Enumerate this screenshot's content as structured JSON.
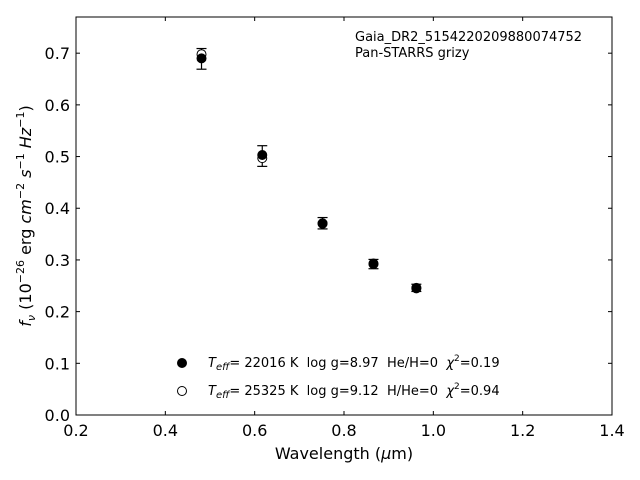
{
  "chart_data": {
    "type": "scatter",
    "annotation_lines": [
      "Gaia_DR2_5154220209880074752",
      "Pan-STARRS grizy"
    ],
    "xlabel": "Wavelength (μm)",
    "ylabel": "f_ν (10^-26 erg cm^-2 s^-1 Hz^-1)",
    "xlim": [
      0.2,
      1.4
    ],
    "ylim": [
      0.0,
      0.77
    ],
    "xticks": [
      0.2,
      0.4,
      0.6,
      0.8,
      1.0,
      1.2,
      1.4
    ],
    "xtick_labels": [
      "0.2",
      "0.4",
      "0.6",
      "0.8",
      "1.0",
      "1.2",
      "1.4"
    ],
    "yticks": [
      0.0,
      0.1,
      0.2,
      0.3,
      0.4,
      0.5,
      0.6,
      0.7
    ],
    "ytick_labels": [
      "0.0",
      "0.1",
      "0.2",
      "0.3",
      "0.4",
      "0.5",
      "0.6",
      "0.7"
    ],
    "grid": false,
    "legend_position": "bottom-center",
    "series": [
      {
        "name": "T_eff= 22016 K  log g=8.97  He/H=0  χ²=0.19",
        "marker": "filled-circle",
        "x": [
          0.481,
          0.617,
          0.752,
          0.866,
          0.962
        ],
        "y": [
          0.69,
          0.503,
          0.37,
          0.292,
          0.245
        ]
      },
      {
        "name": "T_eff= 25325 K  log g=9.12  H/He=0  χ²=0.94",
        "marker": "open-circle",
        "x": [
          0.481,
          0.617,
          0.752,
          0.866,
          0.962
        ],
        "y": [
          0.698,
          0.497,
          0.371,
          0.293,
          0.246
        ]
      }
    ],
    "observed_errorbars": {
      "x": [
        0.481,
        0.617,
        0.752,
        0.866,
        0.962
      ],
      "y": [
        0.689,
        0.501,
        0.371,
        0.292,
        0.246
      ],
      "err": [
        0.02,
        0.02,
        0.011,
        0.009,
        0.007
      ]
    },
    "legend": [
      {
        "marker": "filled-circle",
        "label_parts": {
          "teff": "22016 K",
          "logg": "log g=8.97",
          "comp": "He/H=0",
          "chi2": "=0.19"
        }
      },
      {
        "marker": "open-circle",
        "label_parts": {
          "teff": "25325 K",
          "logg": "log g=9.12",
          "comp": "H/He=0",
          "chi2": "=0.94"
        }
      }
    ]
  },
  "labels": {
    "x_axis": "Wavelength (μm)",
    "y_axis": "f_ν (10^-26 erg cm^-2 s^-1 Hz^-1)"
  }
}
